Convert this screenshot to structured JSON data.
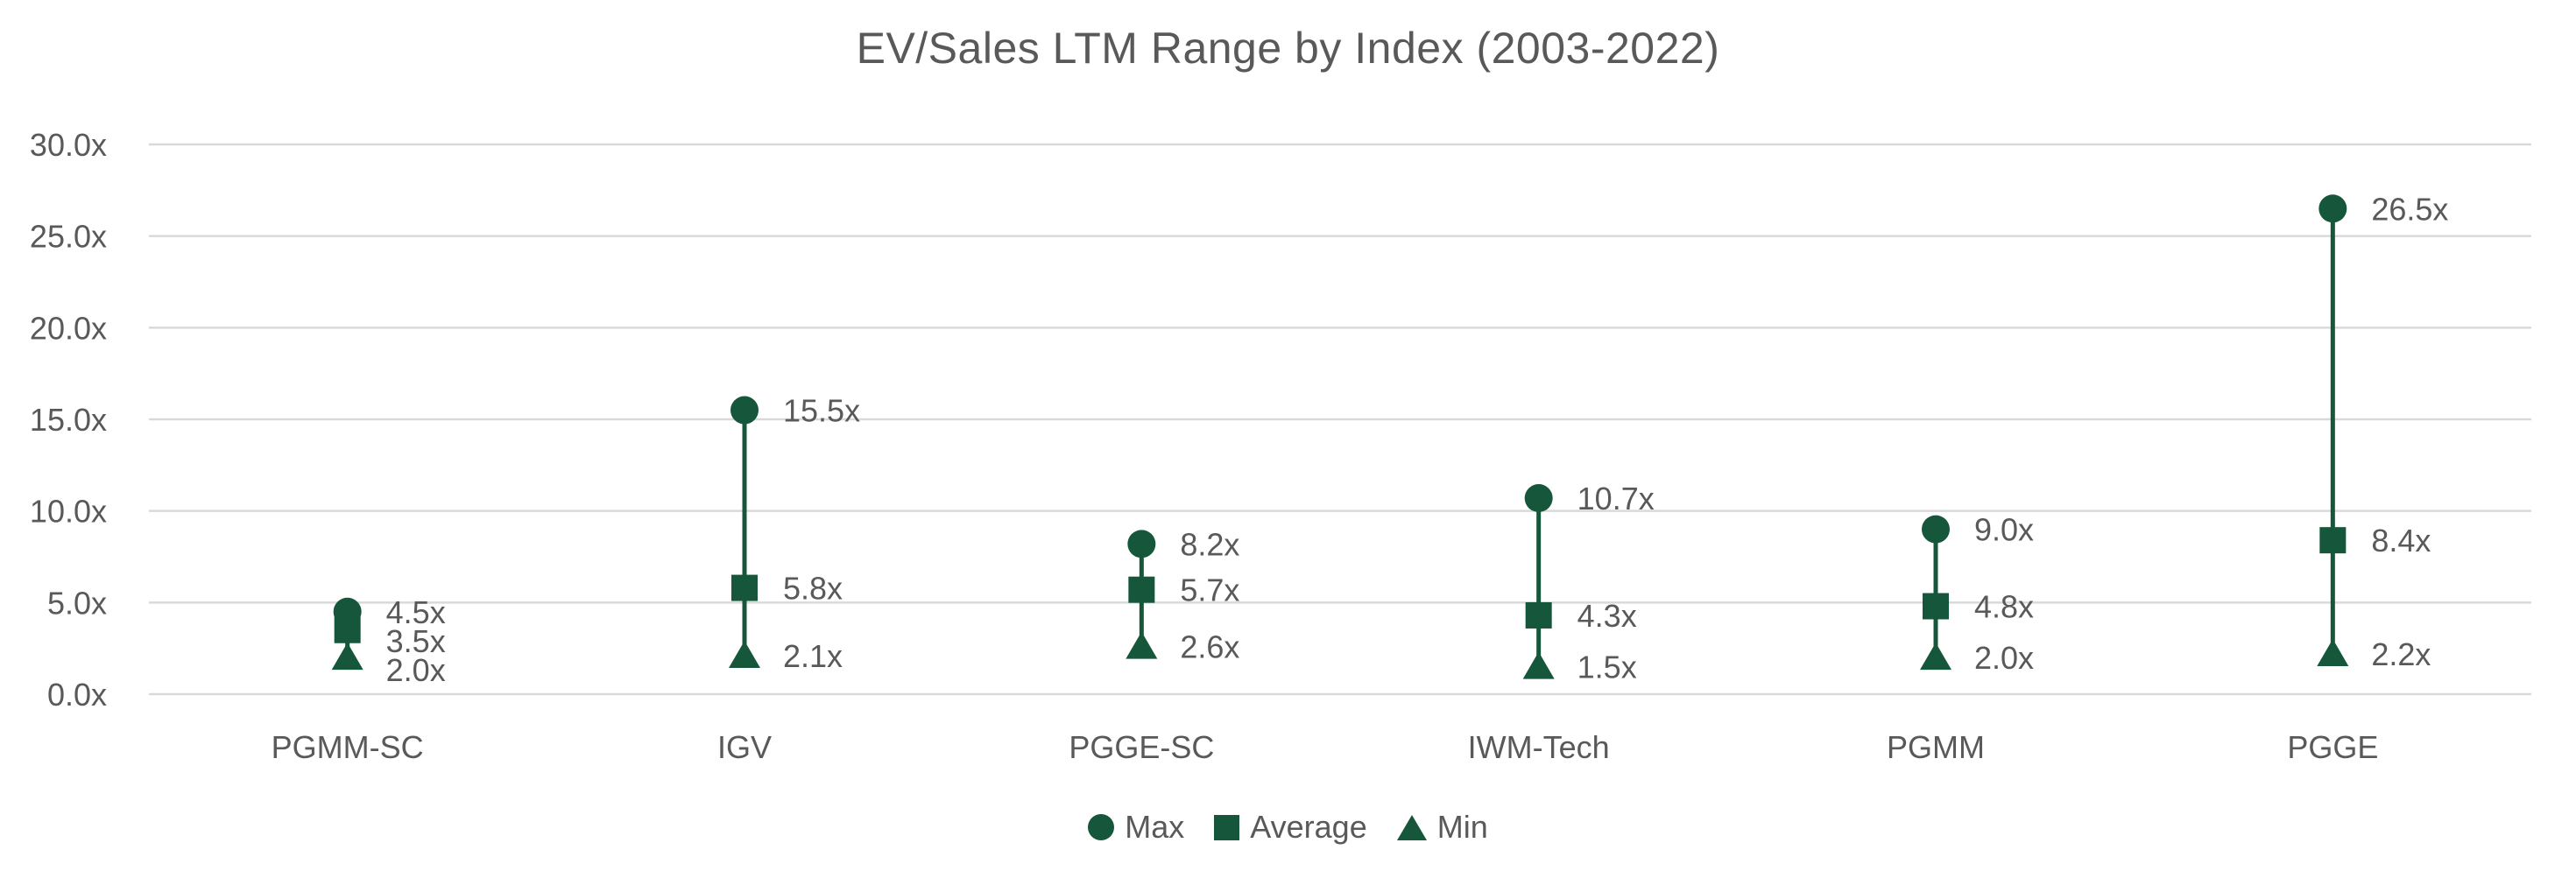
{
  "chart_data": {
    "type": "scatter",
    "title": "EV/Sales LTM Range by Index (2003-2022)",
    "categories": [
      "PGMM-SC",
      "IGV",
      "PGGE-SC",
      "IWM-Tech",
      "PGMM",
      "PGGE"
    ],
    "series": [
      {
        "name": "Max",
        "marker": "circle",
        "values": [
          4.5,
          15.5,
          8.2,
          10.7,
          9.0,
          26.5
        ],
        "labels": [
          "4.5x",
          "15.5x",
          "8.2x",
          "10.7x",
          "9.0x",
          "26.5x"
        ]
      },
      {
        "name": "Average",
        "marker": "square",
        "values": [
          3.5,
          5.8,
          5.7,
          4.3,
          4.8,
          8.4
        ],
        "labels": [
          "3.5x",
          "5.8x",
          "5.7x",
          "4.3x",
          "4.8x",
          "8.4x"
        ]
      },
      {
        "name": "Min",
        "marker": "triangle",
        "values": [
          2.0,
          2.1,
          2.6,
          1.5,
          2.0,
          2.2
        ],
        "labels": [
          "2.0x",
          "2.1x",
          "2.6x",
          "1.5x",
          "2.0x",
          "2.2x"
        ]
      }
    ],
    "y_axis": {
      "ylim": [
        0,
        30
      ],
      "ticks": [
        {
          "label": "30.0x",
          "value": 30
        },
        {
          "label": "25.0x",
          "value": 25
        },
        {
          "label": "20.0x",
          "value": 20
        },
        {
          "label": "15.0x",
          "value": 15
        },
        {
          "label": "10.0x",
          "value": 10
        },
        {
          "label": "5.0x",
          "value": 5
        },
        {
          "label": "0.0x",
          "value": 0
        }
      ]
    },
    "legend": {
      "position": "bottom",
      "items": [
        "Max",
        "Average",
        "Min"
      ]
    },
    "grid": "horizontal",
    "colors": {
      "marker": "#16573B",
      "grid": "#D9D9D9",
      "text": "#595959",
      "background": "#FFFFFF"
    }
  }
}
